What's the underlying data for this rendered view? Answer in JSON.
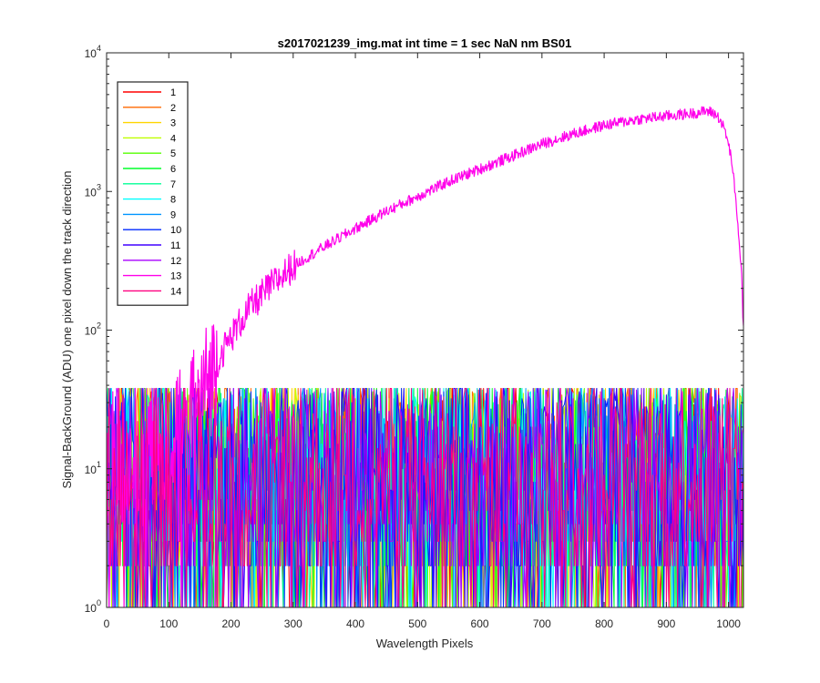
{
  "chart_data": {
    "type": "line",
    "title": "s2017021239_img.mat int time = 1 sec  NaN nm BS01",
    "xlabel": "Wavelength Pixels",
    "ylabel": "Signal-BackGround (ADU) one pixel down the track direction",
    "xlim": [
      0,
      1024
    ],
    "ylim": [
      1,
      10000
    ],
    "yscale": "log",
    "grid": false,
    "legend_placement": "top-left",
    "x_ticks": [
      "0",
      "100",
      "200",
      "300",
      "400",
      "500",
      "600",
      "700",
      "800",
      "900",
      "1000"
    ],
    "x_tick_values": [
      0,
      100,
      200,
      300,
      400,
      500,
      600,
      700,
      800,
      900,
      1000
    ],
    "y_ticks": [
      {
        "base": "10",
        "exp": "0",
        "value": 1
      },
      {
        "base": "10",
        "exp": "1",
        "value": 10
      },
      {
        "base": "10",
        "exp": "2",
        "value": 100
      },
      {
        "base": "10",
        "exp": "3",
        "value": 1000
      },
      {
        "base": "10",
        "exp": "4",
        "value": 10000
      }
    ],
    "noise_band": {
      "description_value_min": 1,
      "description_value_max": 40
    },
    "series": [
      {
        "name": "1",
        "color": "#ff0000",
        "kind": "noise"
      },
      {
        "name": "2",
        "color": "#ff6a00",
        "kind": "noise"
      },
      {
        "name": "3",
        "color": "#ffd500",
        "kind": "noise"
      },
      {
        "name": "4",
        "color": "#bfff00",
        "kind": "noise"
      },
      {
        "name": "5",
        "color": "#55ff00",
        "kind": "noise"
      },
      {
        "name": "6",
        "color": "#00ff2a",
        "kind": "noise"
      },
      {
        "name": "7",
        "color": "#00ff95",
        "kind": "noise"
      },
      {
        "name": "8",
        "color": "#00ffff",
        "kind": "noise"
      },
      {
        "name": "9",
        "color": "#0095ff",
        "kind": "noise"
      },
      {
        "name": "10",
        "color": "#002aff",
        "kind": "noise"
      },
      {
        "name": "11",
        "color": "#4000ff",
        "kind": "noise"
      },
      {
        "name": "12",
        "color": "#aa00ff",
        "kind": "noise"
      },
      {
        "name": "13",
        "color": "#ff00ea",
        "kind": "signal",
        "points": [
          [
            0,
            8
          ],
          [
            50,
            10
          ],
          [
            100,
            14
          ],
          [
            130,
            22
          ],
          [
            150,
            32
          ],
          [
            170,
            50
          ],
          [
            190,
            75
          ],
          [
            210,
            105
          ],
          [
            230,
            145
          ],
          [
            260,
            200
          ],
          [
            300,
            290
          ],
          [
            350,
            400
          ],
          [
            400,
            540
          ],
          [
            450,
            720
          ],
          [
            500,
            920
          ],
          [
            550,
            1180
          ],
          [
            600,
            1450
          ],
          [
            650,
            1780
          ],
          [
            700,
            2200
          ],
          [
            750,
            2600
          ],
          [
            800,
            3000
          ],
          [
            850,
            3300
          ],
          [
            900,
            3500
          ],
          [
            940,
            3650
          ],
          [
            965,
            3800
          ],
          [
            975,
            3700
          ],
          [
            985,
            3400
          ],
          [
            995,
            2700
          ],
          [
            1005,
            1700
          ],
          [
            1015,
            600
          ],
          [
            1024,
            130
          ]
        ]
      },
      {
        "name": "14",
        "color": "#ff0080",
        "kind": "noise"
      }
    ]
  }
}
